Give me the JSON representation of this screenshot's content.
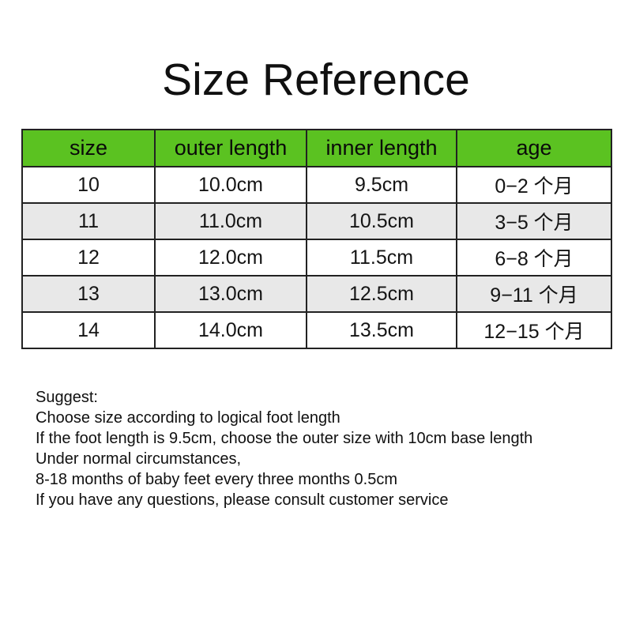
{
  "title": "Size Reference",
  "table": {
    "header_bg": "#5bc221",
    "row_alt_bg": "#e8e8e8",
    "border_color": "#222222",
    "columns": [
      "size",
      "outer length",
      "inner length",
      "age"
    ],
    "rows": [
      [
        "10",
        "10.0cm",
        "9.5cm",
        "0−2 个月"
      ],
      [
        "11",
        "11.0cm",
        "10.5cm",
        "3−5 个月"
      ],
      [
        "12",
        "12.0cm",
        "11.5cm",
        "6−8 个月"
      ],
      [
        "13",
        "13.0cm",
        "12.5cm",
        "9−11 个月"
      ],
      [
        "14",
        "14.0cm",
        "13.5cm",
        "12−15 个月"
      ]
    ]
  },
  "suggest": {
    "lines": [
      "Suggest:",
      "Choose size according to logical foot length",
      "If the foot length is 9.5cm, choose the outer size with 10cm base length",
      "Under normal circumstances,",
      "8-18 months of baby feet every three months 0.5cm",
      "If you have any questions, please consult customer service"
    ]
  }
}
